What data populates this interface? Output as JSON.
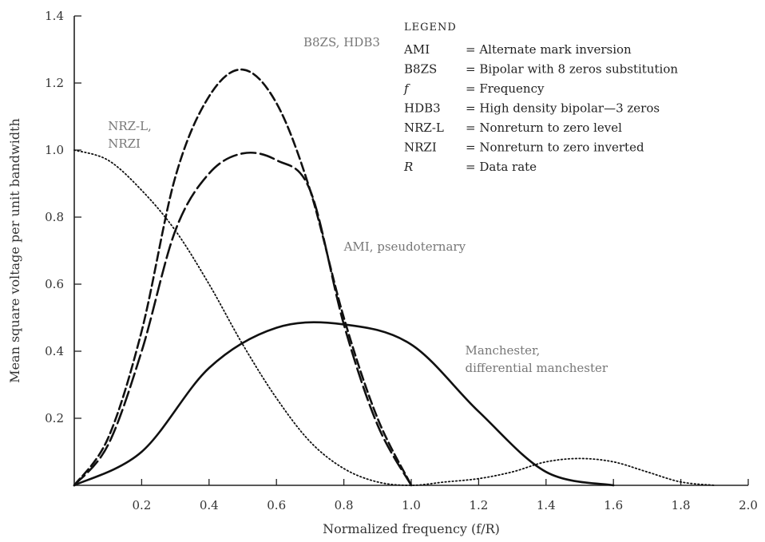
{
  "chart_data": {
    "type": "line",
    "xlabel": "Normalized frequency (f/R)",
    "ylabel": "Mean square voltage per unit bandwidth",
    "xlim": [
      0,
      2.0
    ],
    "ylim": [
      0,
      1.4
    ],
    "x_ticks": [
      "0.2",
      "0.4",
      "0.6",
      "0.8",
      "1.0",
      "1.2",
      "1.4",
      "1.6",
      "1.8",
      "2.0"
    ],
    "y_ticks": [
      "0.2",
      "0.4",
      "0.6",
      "0.8",
      "1.0",
      "1.2",
      "1.4"
    ],
    "legend": {
      "title": "LEGEND",
      "placement": "top-right",
      "entries": [
        {
          "abbr": "AMI",
          "desc": "= Alternate mark inversion"
        },
        {
          "abbr": "B8ZS",
          "desc": "= Bipolar with 8 zeros substitution"
        },
        {
          "abbr": "f",
          "desc": "= Frequency"
        },
        {
          "abbr": "HDB3",
          "desc": "= High density bipolar—3 zeros"
        },
        {
          "abbr": "NRZ-L",
          "desc": "= Nonreturn to zero level"
        },
        {
          "abbr": "NRZI",
          "desc": "= Nonreturn to zero inverted"
        },
        {
          "abbr": "R",
          "desc": "= Data rate"
        }
      ]
    },
    "annotations": [
      {
        "lines": [
          "B8ZS, HDB3"
        ],
        "x": 0.68,
        "y": 1.31
      },
      {
        "lines": [
          "NRZ-L,",
          "NRZI"
        ],
        "x": 0.1,
        "y": 1.06
      },
      {
        "lines": [
          "AMI, pseudoternary"
        ],
        "x": 0.8,
        "y": 0.7
      },
      {
        "lines": [
          "Manchester,",
          "differential manchester"
        ],
        "x": 1.16,
        "y": 0.39
      }
    ],
    "series": [
      {
        "style": "dotted",
        "x": [
          0,
          0.1,
          0.2,
          0.3,
          0.4,
          0.5,
          0.6,
          0.7,
          0.8,
          0.9,
          1.0,
          1.1,
          1.2,
          1.3,
          1.4,
          1.5,
          1.6,
          1.7,
          1.8,
          1.9
        ],
        "values": [
          1.0,
          0.97,
          0.88,
          0.76,
          0.6,
          0.42,
          0.26,
          0.13,
          0.05,
          0.01,
          0.0,
          0.01,
          0.02,
          0.04,
          0.07,
          0.08,
          0.07,
          0.04,
          0.01,
          0.0
        ]
      },
      {
        "style": "dashed",
        "x": [
          0,
          0.1,
          0.2,
          0.3,
          0.4,
          0.5,
          0.6,
          0.7,
          0.8,
          0.9,
          1.0
        ],
        "values": [
          0,
          0.14,
          0.46,
          0.92,
          1.16,
          1.24,
          1.14,
          0.88,
          0.5,
          0.2,
          0
        ]
      },
      {
        "style": "long-dashed",
        "x": [
          0,
          0.1,
          0.2,
          0.3,
          0.4,
          0.5,
          0.6,
          0.7,
          0.8,
          0.9,
          1.0
        ],
        "values": [
          0,
          0.12,
          0.4,
          0.76,
          0.93,
          0.99,
          0.97,
          0.88,
          0.48,
          0.18,
          0
        ]
      },
      {
        "style": "solid",
        "x": [
          0,
          0.2,
          0.4,
          0.6,
          0.8,
          1.0,
          1.2,
          1.4,
          1.6
        ],
        "values": [
          0,
          0.1,
          0.35,
          0.47,
          0.48,
          0.42,
          0.22,
          0.04,
          0
        ]
      }
    ]
  }
}
